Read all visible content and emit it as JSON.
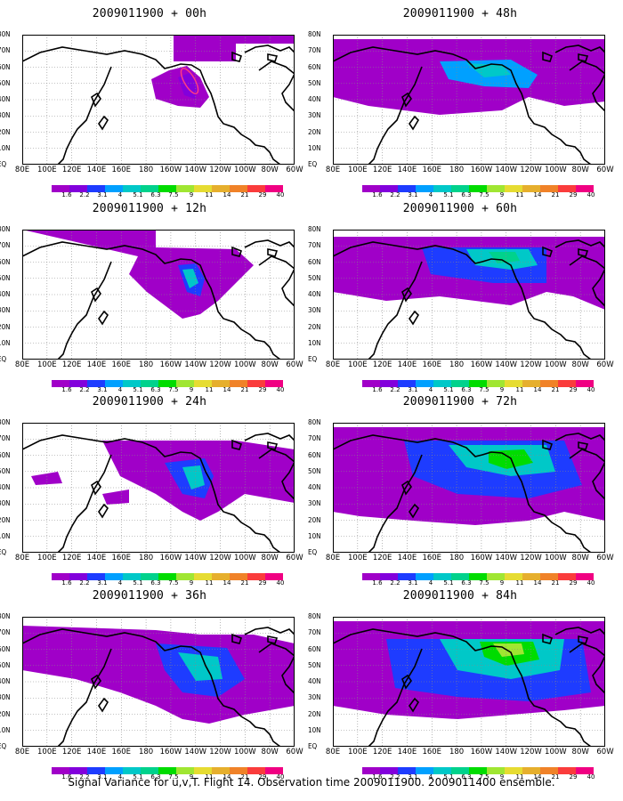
{
  "caption": "Signal Variance for u,v,T. Flight 14. Observation time 2009011900. 2009011400 ensemble.",
  "y_labels": [
    "80N",
    "70N",
    "60N",
    "50N",
    "40N",
    "30N",
    "20N",
    "10N",
    "EQ"
  ],
  "x_labels": [
    "80E",
    "100E",
    "120E",
    "140E",
    "160E",
    "180",
    "160W",
    "140W",
    "120W",
    "100W",
    "80W",
    "60W"
  ],
  "colorbar": {
    "labels": [
      "1.6",
      "2.2",
      "3.1",
      "4",
      "5.1",
      "6.3",
      "7.5",
      "9",
      "11",
      "14",
      "21",
      "29",
      "40"
    ],
    "colors": [
      "#a000c8",
      "#8200dc",
      "#1e3cff",
      "#00a0ff",
      "#00c8c8",
      "#00d28c",
      "#00dc00",
      "#a0e632",
      "#e6dc32",
      "#e6af2d",
      "#f08228",
      "#fa3c3c",
      "#f00082"
    ]
  },
  "panels": [
    {
      "title": "2009011900 + 00h"
    },
    {
      "title": "2009011900 + 48h"
    },
    {
      "title": "2009011900 + 12h"
    },
    {
      "title": "2009011900 + 60h"
    },
    {
      "title": "2009011900 + 24h"
    },
    {
      "title": "2009011900 + 72h"
    },
    {
      "title": "2009011900 + 36h"
    },
    {
      "title": "2009011900 + 84h"
    }
  ]
}
